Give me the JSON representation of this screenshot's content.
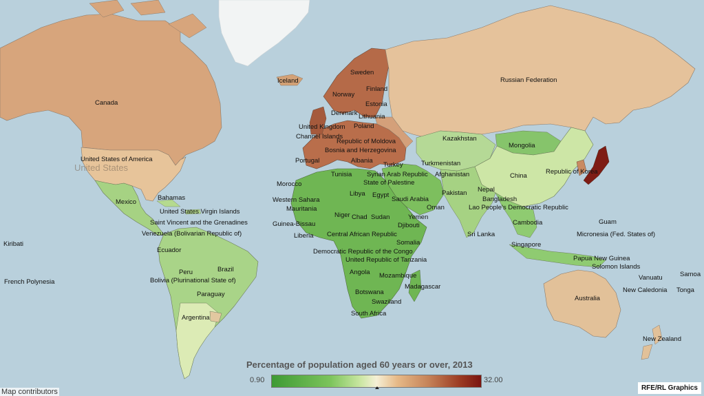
{
  "legend": {
    "title": "Percentage of population aged 60 years or over, 2013",
    "min": "0.90",
    "max": "32.00"
  },
  "attribution": "Map contributors",
  "credit": "RFE/RL Graphics",
  "colors": {
    "ocean": "#b9d0dc",
    "low": "#3e9a34",
    "mid": "#f5f0d6",
    "high": "#7a1410",
    "land_tan": "#dcb58a"
  },
  "labels": {
    "canada": "Canada",
    "usa": "United States of America",
    "usa_ghost": "United States",
    "mexico": "Mexico",
    "bahamas": "Bahamas",
    "usvi": "United States Virgin Islands",
    "svg": "Saint Vincent and the Grenadines",
    "venezuela": "Venezuela (Bolivarian Republic of)",
    "ecuador": "Ecuador",
    "peru": "Peru",
    "brazil": "Brazil",
    "bolivia": "Bolivia (Plurinational State of)",
    "paraguay": "Paraguay",
    "argentina": "Argentina",
    "kiribati": "Kiribati",
    "polynesia": "French Polynesia",
    "iceland": "Iceland",
    "sweden": "Sweden",
    "norway": "Norway",
    "finland": "Finland",
    "estonia": "Estonia",
    "denmark": "Denmark",
    "lithuania": "Lithuania",
    "uk": "United Kingdom",
    "channel": "Channel Islands",
    "poland": "Poland",
    "moldova": "Republic of Moldova",
    "bosnia": "Bosnia and Herzegovina",
    "portugal": "Portugal",
    "albania": "Albania",
    "turkey": "Turkey",
    "tunisia": "Tunisia",
    "syria": "Syrian Arab Republic",
    "palestine": "State of Palestine",
    "morocco": "Morocco",
    "libya": "Libya",
    "egypt": "Egypt",
    "wsahara": "Western Sahara",
    "mauritania": "Mauritania",
    "niger": "Niger",
    "chad": "Chad",
    "sudan": "Sudan",
    "guineabissau": "Guinea-Bissau",
    "liberia": "Liberia",
    "car": "Central African Republic",
    "djibouti": "Djibouti",
    "somalia": "Somalia",
    "drc": "Democratic Republic of the Congo",
    "tanzania": "United Republic of Tanzania",
    "angola": "Angola",
    "mozambique": "Mozambique",
    "madagascar": "Madagascar",
    "botswana": "Botswana",
    "swaziland": "Swaziland",
    "southafrica": "South Africa",
    "saudi": "Saudi Arabia",
    "yemen": "Yemen",
    "oman": "Oman",
    "kazakhstan": "Kazakhstan",
    "turkmenistan": "Turkmenistan",
    "afghanistan": "Afghanistan",
    "pakistan": "Pakistan",
    "nepal": "Nepal",
    "bangladesh": "Bangladesh",
    "srilanka": "Sri Lanka",
    "mongolia": "Mongolia",
    "china": "China",
    "korea": "Republic of Korea",
    "laos": "Lao People's Democratic Republic",
    "cambodia": "Cambodia",
    "singapore": "Singapore",
    "russia": "Russian Federation",
    "guam": "Guam",
    "micronesia": "Micronesia (Fed. States of)",
    "png": "Papua New Guinea",
    "solomon": "Solomon Islands",
    "vanuatu": "Vanuatu",
    "samoa": "Samoa",
    "newcaledonia": "New Caledonia",
    "tonga": "Tonga",
    "australia": "Australia",
    "newzealand": "New Zealand"
  }
}
